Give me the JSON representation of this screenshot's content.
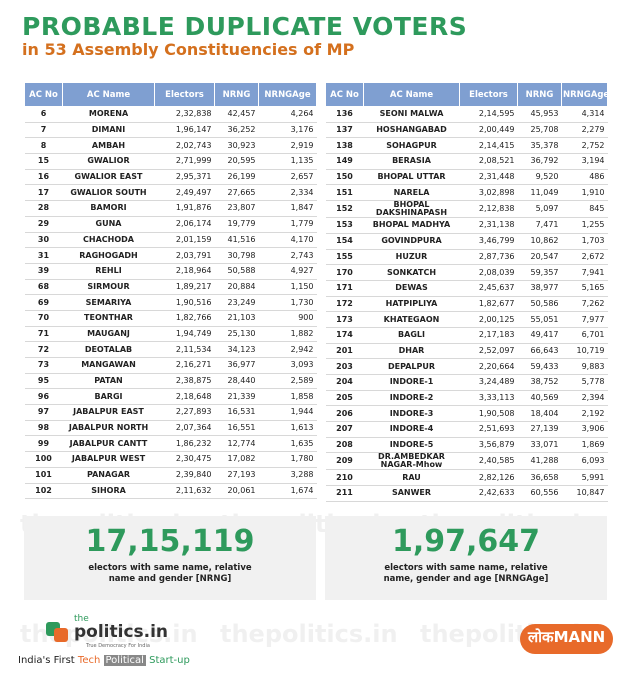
{
  "header": {
    "title": "PROBABLE DUPLICATE VOTERS",
    "subtitle": "in 53 Assembly Constituencies of MP",
    "watermark": "thepolitics.in"
  },
  "tables": [
    {
      "columns": [
        "AC No",
        "AC Name",
        "Electors",
        "NRNG",
        "NRNGAge"
      ],
      "rows": [
        [
          "6",
          "MORENA",
          "2,32,838",
          "42,457",
          "4,264"
        ],
        [
          "7",
          "DIMANI",
          "1,96,147",
          "36,252",
          "3,176"
        ],
        [
          "8",
          "AMBAH",
          "2,02,743",
          "30,923",
          "2,919"
        ],
        [
          "15",
          "GWALIOR",
          "2,71,999",
          "20,595",
          "1,135"
        ],
        [
          "16",
          "GWALIOR EAST",
          "2,95,371",
          "26,199",
          "2,657"
        ],
        [
          "17",
          "GWALIOR SOUTH",
          "2,49,497",
          "27,665",
          "2,334"
        ],
        [
          "28",
          "BAMORI",
          "1,91,876",
          "23,807",
          "1,847"
        ],
        [
          "29",
          "GUNA",
          "2,06,174",
          "19,779",
          "1,779"
        ],
        [
          "30",
          "CHACHODA",
          "2,01,159",
          "41,516",
          "4,170"
        ],
        [
          "31",
          "RAGHOGADH",
          "2,03,791",
          "30,798",
          "2,743"
        ],
        [
          "39",
          "REHLI",
          "2,18,964",
          "50,588",
          "4,927"
        ],
        [
          "68",
          "SIRMOUR",
          "1,89,217",
          "20,884",
          "1,150"
        ],
        [
          "69",
          "SEMARIYA",
          "1,90,516",
          "23,249",
          "1,730"
        ],
        [
          "70",
          "TEONTHAR",
          "1,82,766",
          "21,103",
          "900"
        ],
        [
          "71",
          "MAUGANJ",
          "1,94,749",
          "25,130",
          "1,882"
        ],
        [
          "72",
          "DEOTALAB",
          "2,11,534",
          "34,123",
          "2,942"
        ],
        [
          "73",
          "MANGAWAN",
          "2,16,271",
          "36,977",
          "3,093"
        ],
        [
          "95",
          "PATAN",
          "2,38,875",
          "28,440",
          "2,589"
        ],
        [
          "96",
          "BARGI",
          "2,18,648",
          "21,339",
          "1,858"
        ],
        [
          "97",
          "JABALPUR EAST",
          "2,27,893",
          "16,531",
          "1,944"
        ],
        [
          "98",
          "JABALPUR NORTH",
          "2,07,364",
          "16,551",
          "1,613"
        ],
        [
          "99",
          "JABALPUR CANTT",
          "1,86,232",
          "12,774",
          "1,635"
        ],
        [
          "100",
          "JABALPUR WEST",
          "2,30,475",
          "17,082",
          "1,780"
        ],
        [
          "101",
          "PANAGAR",
          "2,39,840",
          "27,193",
          "3,288"
        ],
        [
          "102",
          "SIHORA",
          "2,11,632",
          "20,061",
          "1,674"
        ]
      ],
      "total": "17,15,119",
      "caption": "electors with same name, relative name and gender [NRNG]"
    },
    {
      "columns": [
        "AC No",
        "AC Name",
        "Electors",
        "NRNG",
        "NRNGAge"
      ],
      "rows": [
        [
          "136",
          "SEONI MALWA",
          "2,14,595",
          "45,953",
          "4,314"
        ],
        [
          "137",
          "HOSHANGABAD",
          "2,00,449",
          "25,708",
          "2,279"
        ],
        [
          "138",
          "SOHAGPUR",
          "2,14,415",
          "35,378",
          "2,752"
        ],
        [
          "149",
          "BERASIA",
          "2,08,521",
          "36,792",
          "3,194"
        ],
        [
          "150",
          "BHOPAL UTTAR",
          "2,31,448",
          "9,520",
          "486"
        ],
        [
          "151",
          "NARELA",
          "3,02,898",
          "11,049",
          "1,910"
        ],
        [
          "152",
          "BHOPAL DAKSHINAPASH",
          "2,12,838",
          "5,097",
          "845"
        ],
        [
          "153",
          "BHOPAL MADHYA",
          "2,31,138",
          "7,471",
          "1,255"
        ],
        [
          "154",
          "GOVINDPURA",
          "3,46,799",
          "10,862",
          "1,703"
        ],
        [
          "155",
          "HUZUR",
          "2,87,736",
          "20,547",
          "2,672"
        ],
        [
          "170",
          "SONKATCH",
          "2,08,039",
          "59,357",
          "7,941"
        ],
        [
          "171",
          "DEWAS",
          "2,45,637",
          "38,977",
          "5,165"
        ],
        [
          "172",
          "HATPIPLIYA",
          "1,82,677",
          "50,586",
          "7,262"
        ],
        [
          "173",
          "KHATEGAON",
          "2,00,125",
          "55,051",
          "7,977"
        ],
        [
          "174",
          "BAGLI",
          "2,17,183",
          "49,417",
          "6,701"
        ],
        [
          "201",
          "DHAR",
          "2,52,097",
          "66,643",
          "10,719"
        ],
        [
          "203",
          "DEPALPUR",
          "2,20,664",
          "59,433",
          "9,883"
        ],
        [
          "204",
          "INDORE-1",
          "3,24,489",
          "38,752",
          "5,778"
        ],
        [
          "205",
          "INDORE-2",
          "3,33,113",
          "40,569",
          "2,394"
        ],
        [
          "206",
          "INDORE-3",
          "1,90,508",
          "18,404",
          "2,192"
        ],
        [
          "207",
          "INDORE-4",
          "2,51,693",
          "27,139",
          "3,906"
        ],
        [
          "208",
          "INDORE-5",
          "3,56,879",
          "33,071",
          "1,869"
        ],
        [
          "209",
          "DR.AMBEDKAR NAGAR-Mhow",
          "2,40,585",
          "41,288",
          "6,093"
        ],
        [
          "210",
          "RAU",
          "2,82,126",
          "36,658",
          "5,991"
        ],
        [
          "211",
          "SANWER",
          "2,42,633",
          "60,556",
          "10,847"
        ]
      ],
      "total": "1,97,647",
      "caption": "electors with same name, relative name, gender and age [NRNGAge]"
    }
  ],
  "footer": {
    "logo_top": "the",
    "logo_main": "politics.in",
    "logo_tag": "True Democracy For India",
    "tagline": [
      "India's First ",
      "Tech",
      " ",
      "Political",
      " Start-up"
    ],
    "brand_hi": "लोक",
    "brand_en": "MANN"
  }
}
